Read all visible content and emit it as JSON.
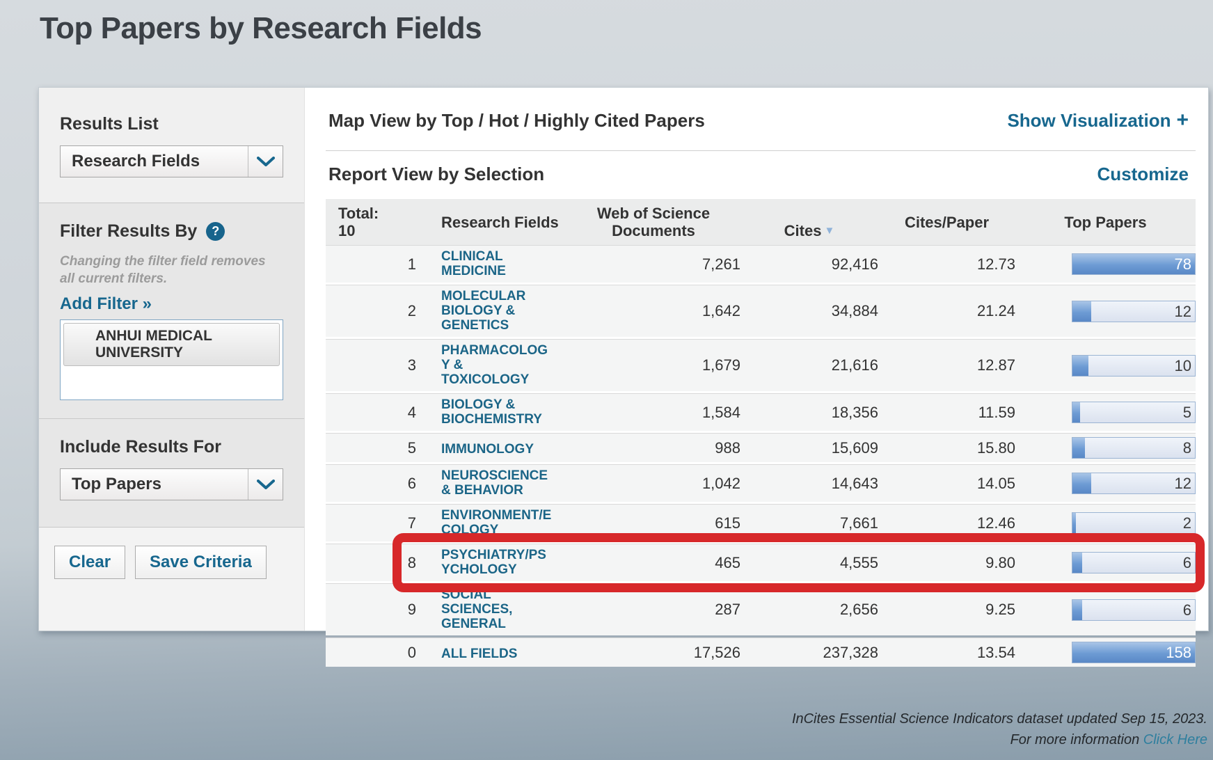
{
  "page": {
    "title": "Top Papers by Research Fields"
  },
  "icons": {
    "help": "?",
    "plus": "+",
    "sort_descending": "▼",
    "add_filter_arrows": "»"
  },
  "colors": {
    "accent_teal": "#17678e",
    "field_link": "#1b6587",
    "bar_fill": "#6d9bd4",
    "bar_track": "#dde4f0",
    "highlight_red": "#d7282a",
    "sorted_column_header": "#5d81a8"
  },
  "sidebar": {
    "results_list": {
      "label": "Results List",
      "selected": "Research Fields"
    },
    "filter": {
      "label": "Filter Results By",
      "note": "Changing the filter field removes all current filters.",
      "add_filter_label": "Add Filter »",
      "selected_filter": "ANHUI MEDICAL UNIVERSITY"
    },
    "include_results": {
      "label": "Include Results For",
      "selected": "Top Papers"
    },
    "buttons": {
      "clear": "Clear",
      "save": "Save Criteria"
    }
  },
  "main": {
    "map_view_title": "Map View by Top / Hot / Highly Cited Papers",
    "show_visualization": "Show Visualization",
    "report_view_title": "Report View by Selection",
    "customize": "Customize"
  },
  "table": {
    "header": {
      "total": "Total:\n10",
      "research_fields": "Research Fields",
      "wos_documents": "Web of Science\nDocuments",
      "cites": "Cites",
      "cites_per_paper": "Cites/Paper",
      "top_papers": "Top Papers"
    },
    "sorted_by": "Cites",
    "rows": [
      {
        "rank": "1",
        "field": "CLINICAL\nMEDICINE",
        "wos": "7,261",
        "cites": "92,416",
        "cpp": "12.73",
        "top": "78",
        "fill_pct": 100,
        "highlighted": false
      },
      {
        "rank": "2",
        "field": "MOLECULAR\nBIOLOGY &\nGENETICS",
        "wos": "1,642",
        "cites": "34,884",
        "cpp": "21.24",
        "top": "12",
        "fill_pct": 15.4,
        "highlighted": false
      },
      {
        "rank": "3",
        "field": "PHARMACOLOG\nY &\nTOXICOLOGY",
        "wos": "1,679",
        "cites": "21,616",
        "cpp": "12.87",
        "top": "10",
        "fill_pct": 12.8,
        "highlighted": false
      },
      {
        "rank": "4",
        "field": "BIOLOGY &\nBIOCHEMISTRY",
        "wos": "1,584",
        "cites": "18,356",
        "cpp": "11.59",
        "top": "5",
        "fill_pct": 6.4,
        "highlighted": false
      },
      {
        "rank": "5",
        "field": "IMMUNOLOGY",
        "wos": "988",
        "cites": "15,609",
        "cpp": "15.80",
        "top": "8",
        "fill_pct": 10.3,
        "highlighted": false
      },
      {
        "rank": "6",
        "field": "NEUROSCIENCE\n& BEHAVIOR",
        "wos": "1,042",
        "cites": "14,643",
        "cpp": "14.05",
        "top": "12",
        "fill_pct": 15.4,
        "highlighted": false
      },
      {
        "rank": "7",
        "field": "ENVIRONMENT/E\nCOLOGY",
        "wos": "615",
        "cites": "7,661",
        "cpp": "12.46",
        "top": "2",
        "fill_pct": 2.6,
        "highlighted": false
      },
      {
        "rank": "8",
        "field": "PSYCHIATRY/PS\nYCHOLOGY",
        "wos": "465",
        "cites": "4,555",
        "cpp": "9.80",
        "top": "6",
        "fill_pct": 7.7,
        "highlighted": true
      },
      {
        "rank": "9",
        "field": "SOCIAL\nSCIENCES,\nGENERAL",
        "wos": "287",
        "cites": "2,656",
        "cpp": "9.25",
        "top": "6",
        "fill_pct": 7.7,
        "highlighted": false
      },
      {
        "rank": "0",
        "field": "ALL FIELDS",
        "wos": "17,526",
        "cites": "237,328",
        "cpp": "13.54",
        "top": "158",
        "fill_pct": 100,
        "highlighted": false
      }
    ]
  },
  "footer": {
    "line1": "InCites Essential Science Indicators dataset updated Sep 15, 2023.",
    "line2_prefix": "For more information ",
    "line2_link": "Click Here"
  }
}
